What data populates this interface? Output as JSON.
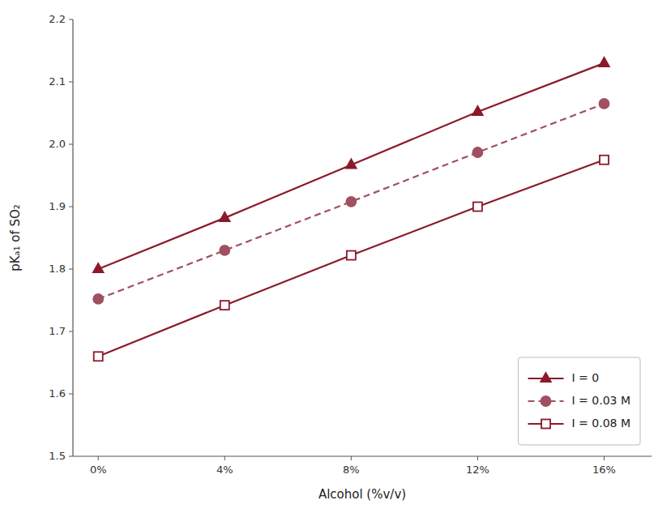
{
  "chart_data": {
    "type": "line",
    "x_label": "Alcohol (%v/v)",
    "y_label": "pKₐ₁ of SO₂",
    "x": [
      0,
      4,
      8,
      12,
      16
    ],
    "xlim": [
      -0.8,
      17.5
    ],
    "xticks": [
      {
        "value": 0,
        "label": "0%"
      },
      {
        "value": 4,
        "label": "4%"
      },
      {
        "value": 8,
        "label": "8%"
      },
      {
        "value": 12,
        "label": "12%"
      },
      {
        "value": 16,
        "label": "16%"
      }
    ],
    "ylim": [
      1.5,
      2.2
    ],
    "yticks": [
      1.5,
      1.6,
      1.7,
      1.8,
      1.9,
      {
        "value": 2.0,
        "label": "2.0"
      },
      2.1,
      2.2
    ],
    "series": [
      {
        "name": "I = 0",
        "color": "#8B1A2A",
        "marker": "triangle",
        "line_style": "solid",
        "values": [
          1.8,
          1.882,
          1.967,
          2.052,
          2.13
        ]
      },
      {
        "name": "I = 0.03 M",
        "color": "#A05060",
        "marker": "circle",
        "line_style": "dashed",
        "values": [
          1.752,
          1.83,
          1.908,
          1.987,
          2.065
        ]
      },
      {
        "name": "I = 0.08 M",
        "color": "#8B1A2A",
        "marker": "square-open",
        "line_style": "solid",
        "values": [
          1.66,
          1.742,
          1.822,
          1.9,
          1.975
        ]
      }
    ],
    "grid": false,
    "legend": "lower right"
  }
}
